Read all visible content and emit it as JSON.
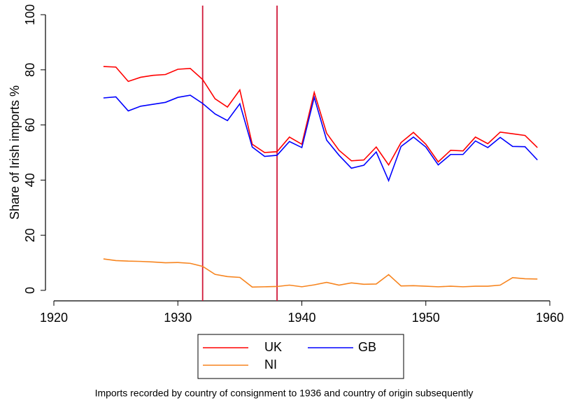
{
  "chart_data": {
    "type": "line",
    "ylabel": "Share of Irish imports %",
    "caption": "Imports recorded by country of consignment to 1936 and country of origin subsequently",
    "x": [
      1924,
      1925,
      1926,
      1927,
      1928,
      1929,
      1930,
      1931,
      1932,
      1933,
      1934,
      1935,
      1936,
      1937,
      1938,
      1939,
      1940,
      1941,
      1942,
      1943,
      1944,
      1945,
      1946,
      1947,
      1948,
      1949,
      1950,
      1951,
      1952,
      1953,
      1954,
      1955,
      1956,
      1957,
      1958,
      1959
    ],
    "series": [
      {
        "name": "UK",
        "color": "#ff0000",
        "values": [
          81.2,
          81,
          75.8,
          77.3,
          78,
          78.3,
          80.2,
          80.5,
          76.5,
          69.5,
          66.5,
          72.7,
          53,
          50,
          50.3,
          55.6,
          53,
          71.8,
          57,
          50.8,
          47,
          47.3,
          52,
          45.5,
          53.6,
          57.3,
          53,
          46.6,
          50.8,
          50.6,
          55.6,
          53.2,
          57.4,
          56.8,
          56.2,
          51.8
        ]
      },
      {
        "name": "GB",
        "color": "#0000ff",
        "values": [
          69.8,
          70.2,
          65.1,
          66.8,
          67.5,
          68.2,
          70,
          70.8,
          67.8,
          64,
          61.6,
          67.7,
          52,
          48.6,
          49,
          54,
          51.8,
          70,
          54.5,
          49,
          44.3,
          45.4,
          50.2,
          39.8,
          52.2,
          55.6,
          52,
          45.5,
          49.3,
          49.3,
          54.2,
          51.8,
          55.5,
          52.2,
          52.1,
          47.3
        ]
      },
      {
        "name": "NI",
        "color": "#f7841e",
        "values": [
          11.4,
          10.8,
          10.6,
          10.5,
          10.3,
          10,
          10.1,
          9.8,
          8.7,
          5.8,
          5,
          4.7,
          1.2,
          1.3,
          1.4,
          1.9,
          1.3,
          2,
          2.9,
          1.9,
          2.7,
          2.2,
          2.3,
          5.7,
          1.6,
          1.7,
          1.5,
          1.3,
          1.5,
          1.3,
          1.5,
          1.5,
          1.9,
          4.6,
          4.2,
          4.1
        ]
      }
    ],
    "vlines": [
      1932,
      1938
    ],
    "vline_color": "#d0193a",
    "xlim": [
      1920,
      1960
    ],
    "xticks": [
      1920,
      1930,
      1940,
      1950,
      1960
    ],
    "ylim": [
      0,
      100
    ],
    "yticks": [
      0,
      20,
      40,
      60,
      80,
      100
    ]
  }
}
